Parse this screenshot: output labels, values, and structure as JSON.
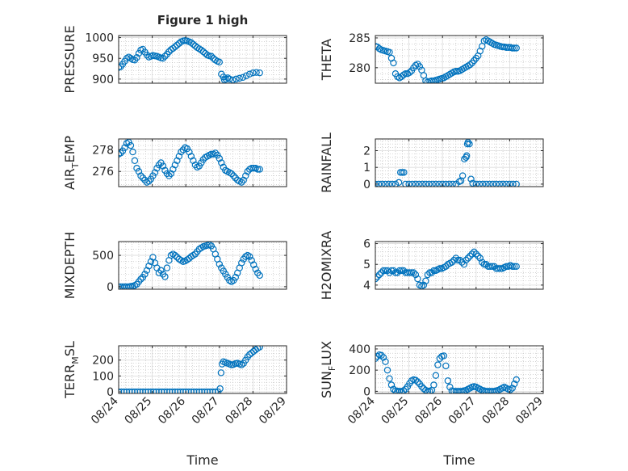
{
  "figure": {
    "title": "Figure 1 high"
  },
  "chart_data": [
    {
      "type": "scatter",
      "id": "pressure",
      "ylabel": "PRESSURE",
      "yticks": [
        900,
        950,
        1000
      ],
      "ylim": [
        890,
        1005
      ],
      "xlim": [
        0,
        5
      ],
      "grid": "on",
      "xtick_labels_shown": false,
      "x": [
        0.0,
        0.06,
        0.12,
        0.18,
        0.24,
        0.3,
        0.36,
        0.42,
        0.48,
        0.54,
        0.6,
        0.66,
        0.72,
        0.78,
        0.84,
        0.9,
        0.96,
        1.02,
        1.08,
        1.14,
        1.2,
        1.26,
        1.32,
        1.38,
        1.44,
        1.5,
        1.56,
        1.62,
        1.68,
        1.74,
        1.8,
        1.86,
        1.92,
        1.98,
        2.04,
        2.1,
        2.16,
        2.22,
        2.28,
        2.34,
        2.4,
        2.46,
        2.52,
        2.58,
        2.64,
        2.7,
        2.76,
        2.82,
        2.88,
        2.94,
        3.0,
        3.06,
        3.12,
        3.15,
        3.2,
        3.25,
        3.3,
        3.4,
        3.5,
        3.6,
        3.7,
        3.8,
        3.9,
        4.0,
        4.1,
        4.2
      ],
      "y": [
        928,
        930,
        936,
        943,
        950,
        953,
        950,
        947,
        946,
        952,
        962,
        970,
        972,
        965,
        958,
        953,
        955,
        957,
        956,
        955,
        953,
        951,
        950,
        955,
        960,
        966,
        971,
        974,
        978,
        982,
        986,
        990,
        992,
        993,
        992,
        990,
        988,
        984,
        980,
        976,
        973,
        970,
        966,
        962,
        958,
        956,
        955,
        950,
        946,
        943,
        941,
        912,
        905,
        898,
        900,
        903,
        900,
        898,
        900,
        902,
        904,
        908,
        912,
        915,
        916,
        915
      ]
    },
    {
      "type": "scatter",
      "id": "theta",
      "ylabel": "THETA",
      "yticks": [
        280,
        285
      ],
      "ylim": [
        277.4,
        285.4
      ],
      "xlim": [
        0,
        5
      ],
      "grid": "on",
      "xtick_labels_shown": false,
      "x": [
        0.0,
        0.06,
        0.12,
        0.18,
        0.24,
        0.3,
        0.36,
        0.42,
        0.48,
        0.54,
        0.6,
        0.66,
        0.72,
        0.78,
        0.84,
        0.9,
        0.96,
        1.02,
        1.08,
        1.14,
        1.2,
        1.26,
        1.32,
        1.38,
        1.44,
        1.5,
        1.56,
        1.62,
        1.68,
        1.74,
        1.8,
        1.86,
        1.92,
        1.98,
        2.04,
        2.1,
        2.16,
        2.22,
        2.28,
        2.34,
        2.4,
        2.46,
        2.52,
        2.58,
        2.64,
        2.7,
        2.76,
        2.82,
        2.88,
        2.94,
        3.0,
        3.06,
        3.12,
        3.18,
        3.24,
        3.3,
        3.36,
        3.42,
        3.48,
        3.54,
        3.6,
        3.66,
        3.72,
        3.78,
        3.84,
        3.9,
        3.96,
        4.02,
        4.08,
        4.14,
        4.2
      ],
      "y": [
        283.6,
        283.5,
        283.2,
        283.0,
        282.9,
        282.8,
        282.7,
        282.6,
        281.6,
        280.8,
        279.0,
        278.5,
        278.3,
        278.5,
        278.8,
        279.0,
        279.0,
        279.2,
        279.5,
        280.0,
        280.4,
        280.6,
        280.2,
        279.6,
        278.7,
        277.8,
        277.6,
        277.7,
        277.8,
        277.8,
        277.9,
        278.0,
        278.1,
        278.2,
        278.3,
        278.5,
        278.7,
        278.9,
        279.1,
        279.3,
        279.4,
        279.4,
        279.5,
        279.7,
        279.9,
        280.1,
        280.3,
        280.5,
        280.8,
        281.2,
        281.6,
        282.0,
        282.8,
        283.6,
        284.5,
        284.7,
        284.5,
        284.3,
        284.1,
        283.9,
        283.8,
        283.7,
        283.6,
        283.5,
        283.5,
        283.4,
        283.4,
        283.4,
        283.3,
        283.3,
        283.3
      ]
    },
    {
      "type": "scatter",
      "id": "air-temp",
      "ylabel": "AIR",
      "ylabel_sub": "T",
      "ylabel_rest": "EMP",
      "yticks": [
        276,
        278
      ],
      "ylim": [
        274.6,
        279.0
      ],
      "xlim": [
        0,
        5
      ],
      "grid": "on",
      "xtick_labels_shown": false,
      "x": [
        0.0,
        0.06,
        0.12,
        0.18,
        0.24,
        0.3,
        0.36,
        0.42,
        0.48,
        0.54,
        0.6,
        0.66,
        0.72,
        0.78,
        0.84,
        0.9,
        0.96,
        1.02,
        1.08,
        1.14,
        1.2,
        1.26,
        1.32,
        1.38,
        1.44,
        1.5,
        1.56,
        1.62,
        1.68,
        1.74,
        1.8,
        1.86,
        1.92,
        1.98,
        2.04,
        2.1,
        2.16,
        2.22,
        2.28,
        2.34,
        2.4,
        2.46,
        2.52,
        2.58,
        2.64,
        2.7,
        2.76,
        2.82,
        2.88,
        2.94,
        3.0,
        3.06,
        3.12,
        3.18,
        3.24,
        3.3,
        3.36,
        3.42,
        3.48,
        3.54,
        3.6,
        3.66,
        3.72,
        3.78,
        3.84,
        3.9,
        3.96,
        4.02,
        4.08,
        4.14,
        4.2
      ],
      "y": [
        277.6,
        277.7,
        277.9,
        278.2,
        278.6,
        278.7,
        278.4,
        277.8,
        277.0,
        276.3,
        276.0,
        275.6,
        275.4,
        275.2,
        275.0,
        275.1,
        275.3,
        275.6,
        275.9,
        276.3,
        276.6,
        276.8,
        276.5,
        276.1,
        275.8,
        275.6,
        275.8,
        276.2,
        276.6,
        277.0,
        277.4,
        277.8,
        278.0,
        278.2,
        278.1,
        277.8,
        277.4,
        277.0,
        276.6,
        276.4,
        276.5,
        276.8,
        277.1,
        277.3,
        277.4,
        277.5,
        277.6,
        277.6,
        277.7,
        277.5,
        277.2,
        276.8,
        276.4,
        276.1,
        276.0,
        275.9,
        275.8,
        275.6,
        275.4,
        275.2,
        275.1,
        275.0,
        275.2,
        275.6,
        276.0,
        276.2,
        276.3,
        276.3,
        276.3,
        276.2,
        276.2
      ]
    },
    {
      "type": "scatter",
      "id": "rainfall",
      "ylabel": "RAINFALL",
      "yticks": [
        0,
        1,
        2
      ],
      "ylim": [
        -0.15,
        2.7
      ],
      "xlim": [
        0,
        5
      ],
      "grid": "on",
      "xtick_labels_shown": false,
      "x": [
        0.0,
        0.1,
        0.2,
        0.3,
        0.4,
        0.5,
        0.6,
        0.7,
        0.75,
        0.8,
        0.85,
        0.9,
        1.0,
        1.1,
        1.2,
        1.3,
        1.4,
        1.5,
        1.6,
        1.7,
        1.8,
        1.9,
        2.0,
        2.1,
        2.2,
        2.3,
        2.4,
        2.5,
        2.55,
        2.6,
        2.65,
        2.7,
        2.72,
        2.74,
        2.76,
        2.8,
        2.85,
        2.9,
        3.0,
        3.1,
        3.2,
        3.3,
        3.4,
        3.5,
        3.6,
        3.7,
        3.8,
        3.9,
        4.0,
        4.1,
        4.2
      ],
      "y": [
        0,
        0,
        0,
        0,
        0,
        0,
        0,
        0.1,
        0.7,
        0.7,
        0.7,
        0,
        0,
        0,
        0,
        0,
        0,
        0,
        0,
        0,
        0,
        0,
        0,
        0,
        0,
        0,
        0,
        0.15,
        0.2,
        0.5,
        1.5,
        1.6,
        1.7,
        2.4,
        2.5,
        2.4,
        0.3,
        0.05,
        0,
        0,
        0,
        0,
        0,
        0,
        0,
        0,
        0,
        0,
        0,
        0,
        0
      ]
    },
    {
      "type": "scatter",
      "id": "mixdepth",
      "ylabel": "MIXDEPTH",
      "yticks": [
        0,
        500
      ],
      "ylim": [
        -40,
        720
      ],
      "xlim": [
        0,
        5
      ],
      "grid": "on",
      "xtick_labels_shown": false,
      "x": [
        0.0,
        0.06,
        0.12,
        0.18,
        0.24,
        0.3,
        0.36,
        0.42,
        0.48,
        0.54,
        0.6,
        0.66,
        0.72,
        0.78,
        0.84,
        0.9,
        0.96,
        1.02,
        1.08,
        1.14,
        1.2,
        1.26,
        1.32,
        1.38,
        1.44,
        1.5,
        1.56,
        1.62,
        1.68,
        1.74,
        1.8,
        1.86,
        1.92,
        1.98,
        2.04,
        2.1,
        2.16,
        2.22,
        2.28,
        2.34,
        2.4,
        2.46,
        2.52,
        2.58,
        2.64,
        2.7,
        2.76,
        2.82,
        2.88,
        2.94,
        3.0,
        3.06,
        3.12,
        3.18,
        3.24,
        3.3,
        3.36,
        3.42,
        3.48,
        3.54,
        3.6,
        3.66,
        3.72,
        3.78,
        3.84,
        3.9,
        3.96,
        4.02,
        4.08,
        4.14,
        4.2
      ],
      "y": [
        0,
        0,
        0,
        0,
        0,
        0,
        5,
        10,
        20,
        40,
        80,
        120,
        150,
        200,
        260,
        330,
        400,
        470,
        380,
        300,
        220,
        260,
        200,
        160,
        300,
        420,
        500,
        520,
        500,
        470,
        440,
        420,
        400,
        410,
        430,
        450,
        480,
        500,
        520,
        560,
        600,
        620,
        640,
        650,
        660,
        670,
        650,
        600,
        520,
        440,
        360,
        300,
        250,
        200,
        150,
        100,
        80,
        100,
        150,
        220,
        300,
        380,
        440,
        480,
        500,
        480,
        420,
        350,
        280,
        220,
        180
      ]
    },
    {
      "type": "scatter",
      "id": "h2omixra",
      "ylabel": "H2OMIXRA",
      "yticks": [
        4,
        5,
        6
      ],
      "ylim": [
        3.8,
        6.1
      ],
      "xlim": [
        0,
        5
      ],
      "grid": "on",
      "xtick_labels_shown": false,
      "x": [
        0.0,
        0.06,
        0.12,
        0.18,
        0.24,
        0.3,
        0.36,
        0.42,
        0.48,
        0.54,
        0.6,
        0.66,
        0.72,
        0.78,
        0.84,
        0.9,
        0.96,
        1.02,
        1.08,
        1.14,
        1.2,
        1.26,
        1.32,
        1.38,
        1.44,
        1.5,
        1.56,
        1.62,
        1.68,
        1.74,
        1.8,
        1.86,
        1.92,
        1.98,
        2.04,
        2.1,
        2.16,
        2.22,
        2.28,
        2.34,
        2.4,
        2.46,
        2.52,
        2.58,
        2.64,
        2.7,
        2.76,
        2.82,
        2.88,
        2.94,
        3.0,
        3.06,
        3.12,
        3.18,
        3.24,
        3.3,
        3.36,
        3.42,
        3.48,
        3.54,
        3.6,
        3.66,
        3.72,
        3.78,
        3.84,
        3.9,
        3.96,
        4.02,
        4.08,
        4.14,
        4.2
      ],
      "y": [
        4.3,
        4.4,
        4.5,
        4.6,
        4.7,
        4.7,
        4.7,
        4.6,
        4.7,
        4.7,
        4.6,
        4.6,
        4.7,
        4.7,
        4.7,
        4.6,
        4.6,
        4.6,
        4.6,
        4.6,
        4.5,
        4.3,
        4.0,
        3.95,
        4.0,
        4.2,
        4.5,
        4.6,
        4.6,
        4.7,
        4.7,
        4.75,
        4.8,
        4.8,
        4.85,
        4.9,
        5.0,
        5.05,
        5.1,
        5.2,
        5.3,
        5.2,
        5.2,
        5.1,
        5.0,
        5.2,
        5.3,
        5.4,
        5.5,
        5.6,
        5.5,
        5.4,
        5.3,
        5.1,
        5.0,
        5.0,
        4.9,
        4.9,
        4.9,
        4.9,
        4.8,
        4.8,
        4.8,
        4.8,
        4.85,
        4.9,
        4.9,
        4.95,
        4.9,
        4.9,
        4.9
      ]
    },
    {
      "type": "scatter",
      "id": "terr-msl",
      "ylabel": "TERR",
      "ylabel_sub": "M",
      "ylabel_rest": "SL",
      "yticks": [
        0,
        100,
        200
      ],
      "ylim": [
        -10,
        290
      ],
      "xlim": [
        0,
        5
      ],
      "grid": "on",
      "xticks": [
        0,
        1,
        2,
        3,
        4,
        5
      ],
      "xtick_labels": [
        "08/24",
        "08/25",
        "08/26",
        "08/27",
        "08/28",
        "08/29"
      ],
      "xlabel": "Time",
      "x": [
        0.0,
        0.08,
        0.16,
        0.24,
        0.32,
        0.4,
        0.48,
        0.56,
        0.64,
        0.72,
        0.8,
        0.88,
        0.96,
        1.04,
        1.12,
        1.2,
        1.28,
        1.36,
        1.44,
        1.52,
        1.6,
        1.68,
        1.76,
        1.84,
        1.92,
        2.0,
        2.08,
        2.16,
        2.24,
        2.32,
        2.4,
        2.48,
        2.56,
        2.64,
        2.72,
        2.8,
        2.88,
        2.96,
        3.02,
        3.05,
        3.08,
        3.12,
        3.18,
        3.24,
        3.3,
        3.36,
        3.42,
        3.48,
        3.54,
        3.6,
        3.66,
        3.72,
        3.78,
        3.84,
        3.9,
        3.96,
        4.02,
        4.08,
        4.14,
        4.2
      ],
      "y": [
        0,
        0,
        0,
        0,
        0,
        0,
        0,
        0,
        0,
        0,
        0,
        0,
        0,
        0,
        0,
        0,
        0,
        0,
        0,
        0,
        0,
        0,
        0,
        0,
        0,
        0,
        0,
        0,
        0,
        0,
        0,
        0,
        0,
        0,
        0,
        0,
        0,
        0,
        20,
        120,
        175,
        190,
        185,
        180,
        175,
        170,
        172,
        178,
        180,
        175,
        170,
        180,
        200,
        220,
        235,
        245,
        255,
        265,
        275,
        282
      ]
    },
    {
      "type": "scatter",
      "id": "sun-flux",
      "ylabel": "SUN",
      "ylabel_sub": "F",
      "ylabel_rest": "LUX",
      "yticks": [
        0,
        200,
        400
      ],
      "ylim": [
        -20,
        430
      ],
      "xlim": [
        0,
        5
      ],
      "grid": "on",
      "xticks": [
        0,
        1,
        2,
        3,
        4,
        5
      ],
      "xtick_labels": [
        "08/24",
        "08/25",
        "08/26",
        "08/27",
        "08/28",
        "08/29"
      ],
      "xlabel": "Time",
      "x": [
        0.0,
        0.06,
        0.12,
        0.18,
        0.24,
        0.3,
        0.36,
        0.42,
        0.48,
        0.54,
        0.6,
        0.66,
        0.72,
        0.78,
        0.84,
        0.9,
        0.96,
        1.02,
        1.08,
        1.14,
        1.2,
        1.26,
        1.32,
        1.38,
        1.44,
        1.5,
        1.56,
        1.62,
        1.68,
        1.74,
        1.8,
        1.86,
        1.92,
        1.98,
        2.04,
        2.1,
        2.16,
        2.22,
        2.28,
        2.34,
        2.4,
        2.46,
        2.52,
        2.58,
        2.64,
        2.7,
        2.76,
        2.82,
        2.88,
        2.94,
        3.0,
        3.06,
        3.12,
        3.18,
        3.24,
        3.3,
        3.36,
        3.42,
        3.48,
        3.54,
        3.6,
        3.66,
        3.72,
        3.78,
        3.84,
        3.9,
        3.96,
        4.02,
        4.08,
        4.14,
        4.2
      ],
      "y": [
        310,
        330,
        345,
        340,
        320,
        280,
        200,
        120,
        60,
        20,
        5,
        2,
        0,
        0,
        5,
        20,
        45,
        75,
        100,
        110,
        105,
        90,
        70,
        45,
        25,
        10,
        2,
        0,
        10,
        60,
        150,
        250,
        310,
        330,
        335,
        240,
        100,
        40,
        5,
        0,
        0,
        0,
        0,
        0,
        5,
        10,
        20,
        30,
        40,
        45,
        40,
        30,
        20,
        10,
        5,
        0,
        0,
        0,
        0,
        0,
        5,
        10,
        20,
        30,
        40,
        30,
        20,
        15,
        30,
        70,
        110
      ]
    }
  ]
}
